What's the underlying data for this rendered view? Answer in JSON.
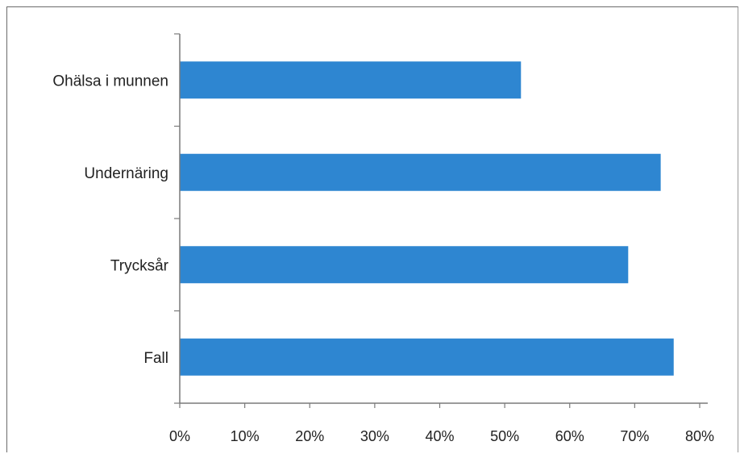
{
  "chart_data": {
    "type": "bar",
    "orientation": "horizontal",
    "categories": [
      "Ohälsa i munnen",
      "Undernäring",
      "Trycksår",
      "Fall"
    ],
    "values": [
      0.525,
      0.74,
      0.69,
      0.76
    ],
    "x_tick_labels": [
      "0%",
      "10%",
      "20%",
      "30%",
      "40%",
      "50%",
      "60%",
      "70%",
      "80%"
    ],
    "xlim": [
      0,
      0.8
    ],
    "title": "",
    "xlabel": "",
    "ylabel": "",
    "grid": false,
    "legend": "none",
    "bar_color": "#2e86d1"
  }
}
